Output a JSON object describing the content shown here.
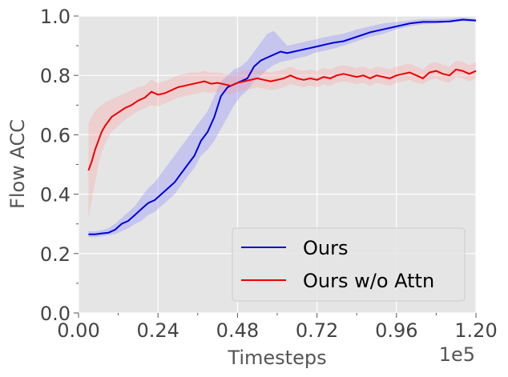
{
  "chart_data": {
    "type": "line",
    "title": "",
    "xlabel": "Timesteps",
    "ylabel": "Flow ACC",
    "x_scale_label": "1e5",
    "xlim": [
      0,
      1.2
    ],
    "ylim": [
      0,
      1.0
    ],
    "xticks": [
      "0.00",
      "0.24",
      "0.48",
      "0.72",
      "0.96",
      "1.20"
    ],
    "yticks": [
      "0.0",
      "0.2",
      "0.4",
      "0.6",
      "0.8",
      "1.0"
    ],
    "grid": true,
    "legend_position": "lower-right",
    "series": [
      {
        "name": "Ours",
        "color": "#0000dd",
        "band_color": "#7b7bff",
        "x": [
          0.03,
          0.05,
          0.07,
          0.09,
          0.11,
          0.13,
          0.15,
          0.17,
          0.19,
          0.21,
          0.23,
          0.25,
          0.27,
          0.29,
          0.31,
          0.33,
          0.35,
          0.37,
          0.39,
          0.41,
          0.43,
          0.45,
          0.47,
          0.49,
          0.51,
          0.53,
          0.55,
          0.57,
          0.59,
          0.61,
          0.63,
          0.65,
          0.67,
          0.69,
          0.71,
          0.73,
          0.75,
          0.77,
          0.8,
          0.84,
          0.88,
          0.92,
          0.96,
          1.0,
          1.04,
          1.08,
          1.12,
          1.16,
          1.2
        ],
        "y": [
          0.265,
          0.265,
          0.268,
          0.27,
          0.28,
          0.3,
          0.31,
          0.33,
          0.35,
          0.37,
          0.38,
          0.4,
          0.42,
          0.44,
          0.47,
          0.5,
          0.53,
          0.58,
          0.61,
          0.66,
          0.73,
          0.76,
          0.77,
          0.78,
          0.79,
          0.83,
          0.85,
          0.86,
          0.87,
          0.88,
          0.875,
          0.88,
          0.885,
          0.89,
          0.895,
          0.9,
          0.905,
          0.91,
          0.915,
          0.93,
          0.945,
          0.955,
          0.965,
          0.975,
          0.98,
          0.98,
          0.982,
          0.988,
          0.985
        ],
        "lower": [
          0.255,
          0.255,
          0.258,
          0.262,
          0.265,
          0.275,
          0.285,
          0.3,
          0.31,
          0.33,
          0.34,
          0.36,
          0.38,
          0.4,
          0.43,
          0.46,
          0.49,
          0.53,
          0.55,
          0.58,
          0.62,
          0.66,
          0.7,
          0.73,
          0.75,
          0.78,
          0.8,
          0.82,
          0.835,
          0.845,
          0.85,
          0.855,
          0.86,
          0.865,
          0.875,
          0.88,
          0.885,
          0.89,
          0.9,
          0.915,
          0.93,
          0.94,
          0.955,
          0.965,
          0.972,
          0.975,
          0.978,
          0.982,
          0.98
        ],
        "upper": [
          0.275,
          0.275,
          0.278,
          0.285,
          0.3,
          0.32,
          0.34,
          0.36,
          0.39,
          0.42,
          0.44,
          0.47,
          0.5,
          0.53,
          0.56,
          0.59,
          0.62,
          0.65,
          0.68,
          0.73,
          0.78,
          0.8,
          0.82,
          0.83,
          0.85,
          0.88,
          0.91,
          0.94,
          0.95,
          0.925,
          0.9,
          0.905,
          0.91,
          0.915,
          0.92,
          0.925,
          0.93,
          0.935,
          0.94,
          0.955,
          0.965,
          0.975,
          0.98,
          0.985,
          0.99,
          0.99,
          0.992,
          0.995,
          0.99
        ]
      },
      {
        "name": "Ours w/o Attn",
        "color": "#ee0000",
        "band_color": "#ff9a9a",
        "x": [
          0.03,
          0.04,
          0.05,
          0.06,
          0.07,
          0.08,
          0.09,
          0.1,
          0.12,
          0.14,
          0.16,
          0.18,
          0.2,
          0.22,
          0.24,
          0.26,
          0.28,
          0.3,
          0.32,
          0.34,
          0.36,
          0.38,
          0.4,
          0.42,
          0.44,
          0.46,
          0.48,
          0.5,
          0.52,
          0.54,
          0.56,
          0.58,
          0.6,
          0.62,
          0.64,
          0.66,
          0.68,
          0.7,
          0.72,
          0.74,
          0.76,
          0.78,
          0.8,
          0.82,
          0.84,
          0.86,
          0.88,
          0.9,
          0.92,
          0.94,
          0.96,
          0.98,
          1.0,
          1.02,
          1.04,
          1.06,
          1.08,
          1.1,
          1.12,
          1.14,
          1.16,
          1.18,
          1.2
        ],
        "y": [
          0.48,
          0.51,
          0.55,
          0.58,
          0.61,
          0.63,
          0.645,
          0.66,
          0.675,
          0.69,
          0.7,
          0.715,
          0.725,
          0.745,
          0.735,
          0.74,
          0.75,
          0.76,
          0.765,
          0.77,
          0.775,
          0.78,
          0.772,
          0.775,
          0.77,
          0.765,
          0.775,
          0.78,
          0.785,
          0.79,
          0.785,
          0.78,
          0.785,
          0.79,
          0.8,
          0.79,
          0.785,
          0.79,
          0.785,
          0.795,
          0.79,
          0.8,
          0.805,
          0.8,
          0.795,
          0.8,
          0.79,
          0.8,
          0.795,
          0.79,
          0.8,
          0.805,
          0.81,
          0.8,
          0.79,
          0.81,
          0.815,
          0.805,
          0.8,
          0.82,
          0.815,
          0.805,
          0.815
        ],
        "lower": [
          0.32,
          0.38,
          0.44,
          0.5,
          0.54,
          0.57,
          0.59,
          0.61,
          0.63,
          0.65,
          0.665,
          0.68,
          0.69,
          0.7,
          0.695,
          0.705,
          0.715,
          0.725,
          0.73,
          0.735,
          0.74,
          0.745,
          0.74,
          0.745,
          0.74,
          0.735,
          0.745,
          0.75,
          0.755,
          0.76,
          0.755,
          0.75,
          0.755,
          0.76,
          0.77,
          0.765,
          0.76,
          0.765,
          0.76,
          0.77,
          0.765,
          0.775,
          0.78,
          0.775,
          0.77,
          0.775,
          0.765,
          0.775,
          0.77,
          0.765,
          0.775,
          0.78,
          0.785,
          0.775,
          0.77,
          0.785,
          0.79,
          0.78,
          0.775,
          0.795,
          0.79,
          0.78,
          0.79
        ],
        "upper": [
          0.64,
          0.66,
          0.68,
          0.69,
          0.7,
          0.71,
          0.715,
          0.72,
          0.73,
          0.74,
          0.75,
          0.76,
          0.765,
          0.785,
          0.775,
          0.78,
          0.79,
          0.8,
          0.805,
          0.81,
          0.81,
          0.815,
          0.81,
          0.81,
          0.805,
          0.8,
          0.81,
          0.815,
          0.82,
          0.82,
          0.815,
          0.81,
          0.815,
          0.82,
          0.83,
          0.82,
          0.815,
          0.82,
          0.815,
          0.825,
          0.82,
          0.83,
          0.835,
          0.83,
          0.825,
          0.83,
          0.82,
          0.83,
          0.825,
          0.82,
          0.83,
          0.835,
          0.84,
          0.83,
          0.82,
          0.84,
          0.845,
          0.835,
          0.83,
          0.85,
          0.845,
          0.835,
          0.845
        ]
      }
    ]
  }
}
